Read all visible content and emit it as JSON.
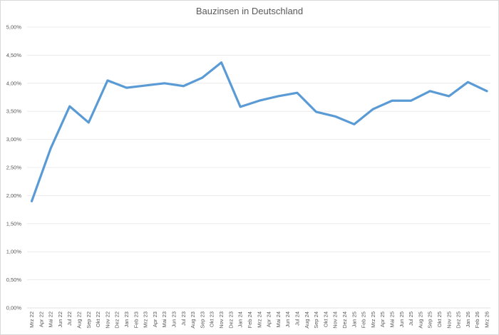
{
  "chart_data": {
    "type": "line",
    "title": "Bauzinsen in Deutschland",
    "xlabel": "",
    "ylabel": "",
    "ylim": [
      0,
      5
    ],
    "yticks": [
      "0,00%",
      "0,50%",
      "1,00%",
      "1,50%",
      "2,00%",
      "2,50%",
      "3,00%",
      "3,50%",
      "4,00%",
      "4,50%",
      "5,00%"
    ],
    "grid": true,
    "legend": null,
    "line_color": "#5b9bd5",
    "categories": [
      "Mrz 22",
      "Apr 22",
      "Mai 22",
      "Jun 22",
      "Jul 22",
      "Aug 22",
      "Sep 22",
      "Okt 22",
      "Nov 22",
      "Dez 22",
      "Jan 23",
      "Feb 23",
      "Mrz 23",
      "Apr 23",
      "Mai 23",
      "Jun 23",
      "Jul 23",
      "Aug 23",
      "Sep 23",
      "Okt 23",
      "Nov 23",
      "Dez 23",
      "Jan 24",
      "Feb 24",
      "Mrz 24",
      "Apr 24",
      "Mai 24",
      "Jun 24",
      "Jul 24",
      "Aug 24",
      "Sep 24",
      "Okt 24",
      "Nov 24",
      "Dez 24",
      "Jan 25",
      "Feb 25",
      "Mrz 25",
      "Apr 25",
      "Mai 25",
      "Jun 25",
      "Jul 25",
      "Aug 25",
      "Sep 25",
      "Okt 25",
      "Nov 25",
      "Dez 25",
      "Jan 26",
      "Feb 26",
      "Mrz 26"
    ],
    "series": [
      {
        "name": "Bauzinsen",
        "values": [
          1.9,
          null,
          2.84,
          null,
          3.59,
          null,
          3.3,
          null,
          4.05,
          null,
          3.92,
          null,
          3.96,
          null,
          4.0,
          null,
          3.95,
          null,
          4.1,
          null,
          4.37,
          null,
          3.58,
          null,
          3.69,
          null,
          3.77,
          null,
          3.83,
          null,
          3.49,
          null,
          3.41,
          null,
          3.27,
          null,
          3.54,
          null,
          3.69,
          null,
          3.69,
          null,
          3.86,
          null,
          3.77,
          null,
          4.02,
          null,
          3.86
        ]
      }
    ]
  }
}
